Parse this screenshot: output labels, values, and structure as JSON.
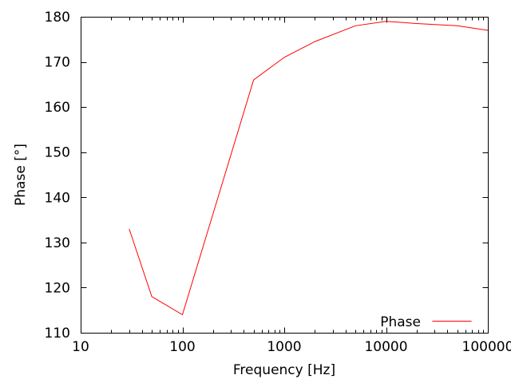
{
  "chart_data": {
    "type": "line",
    "title": "",
    "xlabel": "Frequency [Hz]",
    "ylabel": "Phase [°]",
    "xscale": "log",
    "xlim": [
      10,
      100000
    ],
    "ylim": [
      110,
      180
    ],
    "xticks": [
      10,
      100,
      1000,
      10000,
      100000
    ],
    "xtick_labels": [
      "10",
      "100",
      "1000",
      "10000",
      "100000"
    ],
    "yticks": [
      110,
      120,
      130,
      140,
      150,
      160,
      170,
      180
    ],
    "ytick_labels": [
      "110",
      "120",
      "130",
      "140",
      "150",
      "160",
      "170",
      "180"
    ],
    "grid": false,
    "legend_position": "inside-bottom-right",
    "series": [
      {
        "name": "Phase",
        "color": "#ff0000",
        "x": [
          30,
          50,
          100,
          500,
          1000,
          2000,
          5000,
          10000,
          20000,
          50000,
          100000
        ],
        "y": [
          133,
          118,
          114,
          166,
          171,
          174.5,
          178,
          179,
          178.5,
          178,
          177
        ]
      }
    ]
  },
  "colors": {
    "background": "#ffffff",
    "axis": "#000000",
    "text": "#000000",
    "series": "#ff0000"
  }
}
